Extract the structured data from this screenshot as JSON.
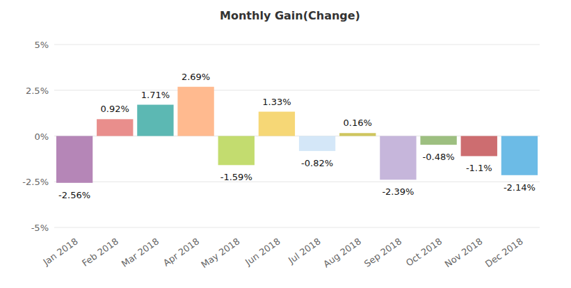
{
  "chart_data": {
    "type": "bar",
    "title": "Monthly Gain(Change)",
    "categories": [
      "Jan 2018",
      "Feb 2018",
      "Mar 2018",
      "Apr 2018",
      "May 2018",
      "Jun 2018",
      "Jul 2018",
      "Aug 2018",
      "Sep 2018",
      "Oct 2018",
      "Nov 2018",
      "Dec 2018"
    ],
    "values": [
      -2.56,
      0.92,
      1.71,
      2.69,
      -1.59,
      1.33,
      -0.82,
      0.16,
      -2.39,
      -0.48,
      -1.1,
      -2.14
    ],
    "value_labels": [
      "-2.56%",
      "0.92%",
      "1.71%",
      "2.69%",
      "-1.59%",
      "1.33%",
      "-0.82%",
      "0.16%",
      "-2.39%",
      "-0.48%",
      "-1.1%",
      "-2.14%"
    ],
    "colors": [
      "#b586b7",
      "#e98e8c",
      "#5cb8b3",
      "#ffba8f",
      "#c3dc6f",
      "#f6d776",
      "#d4e7f8",
      "#cfc65e",
      "#c6b6db",
      "#9dbf80",
      "#cd6d70",
      "#6cbbe6"
    ],
    "ylim": [
      -5,
      5
    ],
    "yticks": [
      {
        "value": -5,
        "label": "-5%"
      },
      {
        "value": -2.5,
        "label": "-2.5%"
      },
      {
        "value": 0,
        "label": "0%"
      },
      {
        "value": 2.5,
        "label": "2.5%"
      },
      {
        "value": 5,
        "label": "5%"
      }
    ],
    "grid": true,
    "data_labels": true
  }
}
